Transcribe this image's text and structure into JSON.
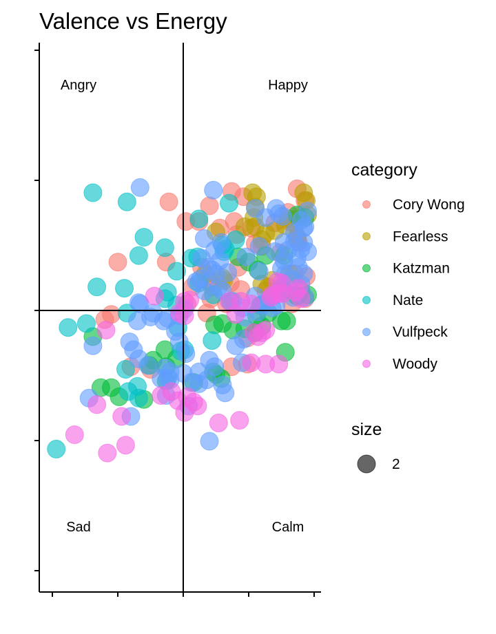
{
  "chart_data": {
    "type": "scatter",
    "title": "Valence vs Energy",
    "xlabel": "",
    "ylabel": "",
    "xlim": [
      -1.1,
      1.05
    ],
    "ylim": [
      -1.1,
      1.05
    ],
    "reference_lines": {
      "x": 0,
      "y": 0
    },
    "quadrant_labels": {
      "top_left": "Angry",
      "top_right": "Happy",
      "bottom_left": "Sad",
      "bottom_right": "Calm"
    },
    "legend": {
      "category_title": "category",
      "size_title": "size",
      "size_value": "2",
      "position": "right"
    },
    "series": [
      {
        "name": "Cory Wong",
        "color": "#F8766D",
        "points": [
          [
            0.87,
            0.93
          ],
          [
            0.37,
            0.91
          ],
          [
            -0.11,
            0.83
          ],
          [
            0.2,
            0.8
          ],
          [
            0.46,
            0.87
          ],
          [
            0.93,
            0.84
          ],
          [
            0.02,
            0.68
          ],
          [
            0.12,
            0.68
          ],
          [
            0.39,
            0.68
          ],
          [
            0.8,
            0.75
          ],
          [
            0.88,
            0.72
          ],
          [
            0.28,
            0.63
          ],
          [
            0.52,
            0.63
          ],
          [
            0.41,
            0.58
          ],
          [
            0.7,
            0.67
          ],
          [
            0.85,
            0.66
          ],
          [
            0.55,
            0.51
          ],
          [
            0.6,
            0.49
          ],
          [
            0.74,
            0.44
          ],
          [
            0.88,
            0.52
          ],
          [
            -0.5,
            0.37
          ],
          [
            -0.13,
            0.37
          ],
          [
            0.14,
            0.33
          ],
          [
            0.42,
            0.33
          ],
          [
            0.85,
            0.28
          ],
          [
            0.94,
            0.26
          ],
          [
            0.2,
            0.22
          ],
          [
            0.07,
            0.18
          ],
          [
            0.36,
            0.21
          ],
          [
            0.22,
            0.18
          ],
          [
            0.44,
            0.16
          ],
          [
            0.63,
            0.15
          ],
          [
            0.9,
            0.15
          ],
          [
            0.03,
            0.05
          ],
          [
            0.21,
            0.09
          ],
          [
            0.33,
            0.05
          ],
          [
            0.83,
            0.05
          ],
          [
            0.18,
            -0.02
          ],
          [
            0.93,
            0.09
          ],
          [
            -0.55,
            -0.03
          ],
          [
            -0.6,
            -0.07
          ],
          [
            0.49,
            -0.21
          ],
          [
            -0.4,
            -0.43
          ],
          [
            -0.25,
            -0.45
          ],
          [
            0.49,
            -0.41
          ],
          [
            0.37,
            -0.43
          ],
          [
            0.81,
            0.68
          ],
          [
            0.87,
            0.55
          ]
        ]
      },
      {
        "name": "Fearless",
        "color": "#B79F00",
        "points": [
          [
            0.53,
            0.9
          ],
          [
            0.56,
            0.87
          ],
          [
            0.92,
            0.9
          ],
          [
            0.94,
            0.84
          ],
          [
            0.55,
            0.79
          ],
          [
            0.54,
            0.71
          ],
          [
            0.47,
            0.64
          ],
          [
            0.55,
            0.64
          ],
          [
            0.8,
            0.7
          ],
          [
            0.78,
            0.65
          ],
          [
            0.95,
            0.73
          ],
          [
            0.25,
            0.6
          ],
          [
            0.63,
            0.59
          ],
          [
            0.7,
            0.61
          ],
          [
            0.87,
            0.56
          ],
          [
            0.6,
            0.54
          ],
          [
            0.17,
            0.28
          ],
          [
            0.3,
            0.25
          ],
          [
            0.68,
            0.23
          ],
          [
            0.81,
            0.28
          ],
          [
            0.31,
            0.23
          ],
          [
            0.6,
            0.2
          ],
          [
            0.65,
            0.18
          ],
          [
            0.88,
            0.7
          ]
        ]
      },
      {
        "name": "Katzman",
        "color": "#00BA38",
        "points": [
          [
            0.87,
            0.73
          ],
          [
            0.93,
            0.71
          ],
          [
            0.63,
            0.42
          ],
          [
            0.77,
            0.42
          ],
          [
            0.5,
            0.37
          ],
          [
            0.42,
            0.41
          ],
          [
            0.57,
            0.31
          ],
          [
            0.75,
            0.17
          ],
          [
            0.76,
            0.15
          ],
          [
            0.87,
            0.11
          ],
          [
            0.95,
            0.12
          ],
          [
            0.59,
            0.04
          ],
          [
            0.65,
            -0.02
          ],
          [
            0.56,
            -0.04
          ],
          [
            0.75,
            -0.08
          ],
          [
            0.79,
            -0.08
          ],
          [
            0.24,
            -0.11
          ],
          [
            0.3,
            -0.1
          ],
          [
            0.38,
            -0.15
          ],
          [
            0.47,
            -0.14
          ],
          [
            0.6,
            -0.12
          ],
          [
            0.78,
            -0.32
          ],
          [
            0.55,
            -0.17
          ],
          [
            -0.69,
            -0.2
          ],
          [
            -0.14,
            -0.3
          ],
          [
            -0.23,
            -0.38
          ],
          [
            -0.26,
            -0.42
          ],
          [
            -0.05,
            -0.37
          ],
          [
            -0.13,
            -0.43
          ],
          [
            0.23,
            -0.47
          ],
          [
            0.29,
            -0.52
          ],
          [
            -0.13,
            -0.54
          ],
          [
            -0.63,
            -0.59
          ],
          [
            -0.55,
            -0.59
          ],
          [
            -0.49,
            -0.66
          ],
          [
            -0.3,
            -0.68
          ],
          [
            0.08,
            -0.55
          ],
          [
            0.25,
            -0.49
          ]
        ]
      },
      {
        "name": "Nate",
        "color": "#00BFC4",
        "points": [
          [
            -0.69,
            0.9
          ],
          [
            -0.43,
            0.83
          ],
          [
            0.35,
            0.82
          ],
          [
            -0.3,
            0.56
          ],
          [
            -0.14,
            0.48
          ],
          [
            0.3,
            0.5
          ],
          [
            0.32,
            0.47
          ],
          [
            -0.34,
            0.42
          ],
          [
            0.06,
            0.4
          ],
          [
            0.11,
            0.41
          ],
          [
            -0.05,
            0.3
          ],
          [
            -0.66,
            0.18
          ],
          [
            -0.45,
            0.17
          ],
          [
            0.23,
            0.12
          ],
          [
            0.12,
            0.21
          ],
          [
            -0.12,
            0.14
          ],
          [
            0.36,
            0.07
          ],
          [
            -0.14,
            0.09
          ],
          [
            -0.43,
            -0.02
          ],
          [
            -0.05,
            0.04
          ],
          [
            -0.74,
            -0.1
          ],
          [
            -0.88,
            -0.13
          ],
          [
            -0.04,
            -0.13
          ],
          [
            0.22,
            -0.23
          ],
          [
            -0.02,
            -0.31
          ],
          [
            0.01,
            -0.3
          ],
          [
            -0.44,
            -0.45
          ],
          [
            -0.35,
            -0.58
          ],
          [
            -0.42,
            -0.62
          ],
          [
            -0.34,
            -0.67
          ],
          [
            -0.97,
            -1.06
          ],
          [
            0.4,
            0.54
          ],
          [
            0.12,
            0.7
          ],
          [
            0.31,
            0.45
          ]
        ]
      },
      {
        "name": "Vulfpeck",
        "color": "#619CFF",
        "points": [
          [
            -0.33,
            0.94
          ],
          [
            0.23,
            0.92
          ],
          [
            0.55,
            0.78
          ],
          [
            0.71,
            0.78
          ],
          [
            0.76,
            0.72
          ],
          [
            0.9,
            0.69
          ],
          [
            0.95,
            0.76
          ],
          [
            0.73,
            0.74
          ],
          [
            0.63,
            0.71
          ],
          [
            0.93,
            0.64
          ],
          [
            0.85,
            0.6
          ],
          [
            0.92,
            0.63
          ],
          [
            0.16,
            0.55
          ],
          [
            0.29,
            0.52
          ],
          [
            0.77,
            0.52
          ],
          [
            0.92,
            0.52
          ],
          [
            0.24,
            0.46
          ],
          [
            0.58,
            0.49
          ],
          [
            0.7,
            0.45
          ],
          [
            0.9,
            0.47
          ],
          [
            0.95,
            0.45
          ],
          [
            0.14,
            0.4
          ],
          [
            0.48,
            0.41
          ],
          [
            0.77,
            0.38
          ],
          [
            0.87,
            0.4
          ],
          [
            0.28,
            0.38
          ],
          [
            0.75,
            0.32
          ],
          [
            0.88,
            0.33
          ],
          [
            0.19,
            0.33
          ],
          [
            0.25,
            0.28
          ],
          [
            0.58,
            0.3
          ],
          [
            0.78,
            0.28
          ],
          [
            0.92,
            0.28
          ],
          [
            0.82,
            0.23
          ],
          [
            0.9,
            0.2
          ],
          [
            0.76,
            0.18
          ],
          [
            0.1,
            0.22
          ],
          [
            0.16,
            0.15
          ],
          [
            0.27,
            0.18
          ],
          [
            0.38,
            0.07
          ],
          [
            0.45,
            0.02
          ],
          [
            0.84,
            0.1
          ],
          [
            0.93,
            0.1
          ],
          [
            0.7,
            0.12
          ],
          [
            0.63,
            0.06
          ],
          [
            0.68,
            0.02
          ],
          [
            -0.34,
            0.06
          ],
          [
            -0.33,
            0.05
          ],
          [
            -0.25,
            -0.05
          ],
          [
            -0.23,
            -0.02
          ],
          [
            -0.12,
            -0.06
          ],
          [
            -0.15,
            -0.08
          ],
          [
            -0.03,
            -0.04
          ],
          [
            0.01,
            0.01
          ],
          [
            -0.35,
            -0.08
          ],
          [
            -0.03,
            -0.24
          ],
          [
            -0.06,
            -0.16
          ],
          [
            -0.41,
            -0.24
          ],
          [
            -0.69,
            -0.27
          ],
          [
            0.02,
            -0.33
          ],
          [
            -0.34,
            -0.37
          ],
          [
            -0.27,
            -0.42
          ],
          [
            -0.14,
            -0.44
          ],
          [
            -0.1,
            -0.47
          ],
          [
            -0.12,
            -0.52
          ],
          [
            0.0,
            -0.48
          ],
          [
            0.2,
            -0.38
          ],
          [
            0.24,
            -0.43
          ],
          [
            0.4,
            -0.27
          ],
          [
            0.46,
            -0.22
          ],
          [
            0.12,
            -0.47
          ],
          [
            -0.1,
            -0.53
          ],
          [
            -0.17,
            -0.52
          ],
          [
            -0.72,
            -0.67
          ],
          [
            -0.13,
            -0.65
          ],
          [
            0.04,
            -0.73
          ],
          [
            -0.4,
            -0.81
          ],
          [
            0.3,
            -0.57
          ],
          [
            0.32,
            -0.63
          ],
          [
            0.18,
            -0.53
          ],
          [
            0.12,
            -0.56
          ],
          [
            0.06,
            -0.55
          ],
          [
            0.45,
            -0.4
          ],
          [
            0.2,
            -1.0
          ],
          [
            0.85,
            0.53
          ],
          [
            0.13,
            0.24
          ],
          [
            0.22,
            0.31
          ],
          [
            0.34,
            0.29
          ],
          [
            0.3,
            0.15
          ],
          [
            0.8,
            0.46
          ],
          [
            0.6,
            0.04
          ],
          [
            0.71,
            0.04
          ],
          [
            0.57,
            -0.01
          ],
          [
            0.47,
            -0.05
          ],
          [
            0.55,
            0.11
          ],
          [
            -0.38,
            -0.3
          ]
        ]
      },
      {
        "name": "Woody",
        "color": "#F564E3",
        "points": [
          [
            0.67,
            0.1
          ],
          [
            0.68,
            0.12
          ],
          [
            0.72,
            0.22
          ],
          [
            0.75,
            0.21
          ],
          [
            0.73,
            0.13
          ],
          [
            0.88,
            0.17
          ],
          [
            0.9,
            0.09
          ],
          [
            0.76,
            0.13
          ],
          [
            0.86,
            0.14
          ],
          [
            0.44,
            0.07
          ],
          [
            0.52,
            0.05
          ],
          [
            0.35,
            0.07
          ],
          [
            0.4,
            -0.03
          ],
          [
            0.01,
            0.07
          ],
          [
            -0.22,
            0.11
          ],
          [
            0.05,
            0.08
          ],
          [
            0.01,
            -0.04
          ],
          [
            -0.03,
            -0.02
          ],
          [
            0.6,
            -0.17
          ],
          [
            0.63,
            -0.15
          ],
          [
            0.57,
            -0.2
          ],
          [
            0.54,
            -0.17
          ],
          [
            -0.59,
            -0.15
          ],
          [
            0.52,
            -0.4
          ],
          [
            0.63,
            -0.41
          ],
          [
            0.73,
            -0.41
          ],
          [
            -0.17,
            -0.65
          ],
          [
            -0.04,
            -0.69
          ],
          [
            0.01,
            -0.78
          ],
          [
            0.11,
            -0.73
          ],
          [
            0.27,
            -0.86
          ],
          [
            0.43,
            -0.84
          ],
          [
            -0.66,
            -0.72
          ],
          [
            -0.47,
            -0.81
          ],
          [
            -0.83,
            -0.95
          ],
          [
            -0.44,
            -1.03
          ],
          [
            -0.58,
            -1.09
          ],
          [
            -0.09,
            -0.62
          ],
          [
            0.03,
            -0.66
          ],
          [
            0.08,
            -0.7
          ]
        ]
      }
    ]
  }
}
